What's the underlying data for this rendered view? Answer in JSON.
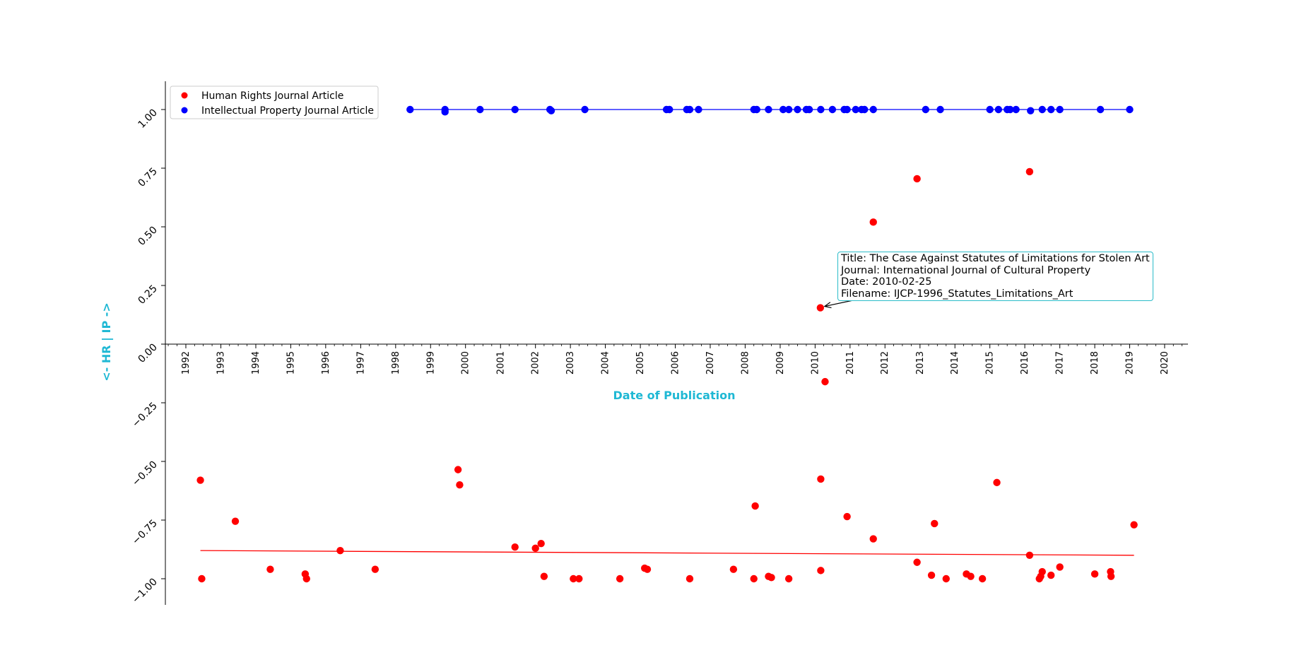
{
  "chart_data": {
    "type": "scatter",
    "title": "",
    "xlabel": "Date of Publication",
    "ylabel": "<- HR | IP ->",
    "xlim": [
      "1991-06-01",
      "2020-09-01"
    ],
    "ylim": [
      -1.1,
      1.12
    ],
    "x_tick_labels": [
      "1992",
      "1993",
      "1994",
      "1995",
      "1996",
      "1997",
      "1998",
      "1999",
      "2000",
      "2001",
      "2002",
      "2003",
      "2004",
      "2005",
      "2006",
      "2007",
      "2008",
      "2009",
      "2010",
      "2011",
      "2012",
      "2013",
      "2014",
      "2015",
      "2016",
      "2017",
      "2018",
      "2019",
      "2020"
    ],
    "y_ticks": [
      -1.0,
      -0.75,
      -0.5,
      -0.25,
      0.0,
      0.25,
      0.5,
      0.75,
      1.0
    ],
    "y_tick_labels": [
      "−1.00",
      "−0.75",
      "−0.50",
      "−0.25",
      "0.00",
      "0.25",
      "0.50",
      "0.75",
      "1.00"
    ],
    "grid": false,
    "legend_placement": "top-left",
    "axis_label_color": "#1fb8d4",
    "series": [
      {
        "name": "Human Rights Journal Article",
        "color": "#ff0000",
        "points": [
          [
            "1992-06-01",
            -0.58
          ],
          [
            "1992-06-15",
            -1.0
          ],
          [
            "1993-06-01",
            -0.755
          ],
          [
            "1994-06-01",
            -0.96
          ],
          [
            "1995-06-01",
            -0.98
          ],
          [
            "1995-06-15",
            -1.0
          ],
          [
            "1996-06-01",
            -0.88
          ],
          [
            "1997-06-01",
            -0.96
          ],
          [
            "1999-10-15",
            -0.535
          ],
          [
            "1999-11-01",
            -0.6
          ],
          [
            "2001-06-01",
            -0.865
          ],
          [
            "2002-01-01",
            -0.87
          ],
          [
            "2002-03-01",
            -0.85
          ],
          [
            "2002-04-01",
            -0.99
          ],
          [
            "2003-02-01",
            -1.0
          ],
          [
            "2003-04-01",
            -1.0
          ],
          [
            "2004-06-01",
            -1.0
          ],
          [
            "2005-02-15",
            -0.955
          ],
          [
            "2005-03-15",
            -0.96
          ],
          [
            "2006-06-01",
            -1.0
          ],
          [
            "2007-09-01",
            -0.96
          ],
          [
            "2008-04-01",
            -1.0
          ],
          [
            "2008-04-15",
            -0.69
          ],
          [
            "2008-09-01",
            -0.99
          ],
          [
            "2008-10-01",
            -0.995
          ],
          [
            "2009-04-01",
            -1.0
          ],
          [
            "2010-02-25",
            0.155
          ],
          [
            "2010-03-01",
            -0.575
          ],
          [
            "2010-03-01",
            -0.965
          ],
          [
            "2010-04-15",
            -0.16
          ],
          [
            "2010-12-01",
            -0.735
          ],
          [
            "2011-09-01",
            0.52
          ],
          [
            "2011-09-01",
            -0.83
          ],
          [
            "2012-12-01",
            0.705
          ],
          [
            "2012-12-01",
            -0.93
          ],
          [
            "2013-05-01",
            -0.985
          ],
          [
            "2013-06-01",
            -0.765
          ],
          [
            "2013-10-01",
            -1.0
          ],
          [
            "2014-05-01",
            -0.98
          ],
          [
            "2014-06-15",
            -0.99
          ],
          [
            "2014-10-15",
            -1.0
          ],
          [
            "2015-03-15",
            -0.59
          ],
          [
            "2016-02-20",
            0.735
          ],
          [
            "2016-02-20",
            -0.9
          ],
          [
            "2016-06-01",
            -1.0
          ],
          [
            "2016-06-15",
            -0.99
          ],
          [
            "2016-07-01",
            -0.97
          ],
          [
            "2016-10-01",
            -0.985
          ],
          [
            "2017-01-01",
            -0.95
          ],
          [
            "2018-01-01",
            -0.98
          ],
          [
            "2018-06-15",
            -0.97
          ],
          [
            "2018-06-20",
            -0.99
          ],
          [
            "2019-02-15",
            -0.77
          ]
        ],
        "trend": [
          [
            "1992-06-01",
            -0.88
          ],
          [
            "2019-02-15",
            -0.9
          ]
        ]
      },
      {
        "name": "Intellectual Property Journal Article",
        "color": "#0000ff",
        "points": [
          [
            "1998-06-01",
            1.0
          ],
          [
            "1999-06-01",
            1.0
          ],
          [
            "1999-06-01",
            0.99
          ],
          [
            "2000-06-01",
            1.0
          ],
          [
            "2001-06-01",
            1.0
          ],
          [
            "2002-06-01",
            1.0
          ],
          [
            "2002-06-15",
            0.995
          ],
          [
            "2003-06-01",
            1.0
          ],
          [
            "2005-10-01",
            1.0
          ],
          [
            "2005-11-01",
            1.0
          ],
          [
            "2006-05-01",
            1.0
          ],
          [
            "2006-06-01",
            1.0
          ],
          [
            "2006-09-01",
            1.0
          ],
          [
            "2008-04-01",
            1.0
          ],
          [
            "2008-05-01",
            1.0
          ],
          [
            "2008-09-01",
            1.0
          ],
          [
            "2009-02-01",
            1.0
          ],
          [
            "2009-04-01",
            1.0
          ],
          [
            "2009-07-01",
            1.0
          ],
          [
            "2009-10-01",
            1.0
          ],
          [
            "2009-11-01",
            1.0
          ],
          [
            "2010-03-01",
            1.0
          ],
          [
            "2010-07-01",
            1.0
          ],
          [
            "2010-11-01",
            1.0
          ],
          [
            "2010-12-01",
            1.0
          ],
          [
            "2011-03-01",
            1.0
          ],
          [
            "2011-05-01",
            1.0
          ],
          [
            "2011-06-01",
            1.0
          ],
          [
            "2011-09-01",
            1.0
          ],
          [
            "2013-03-01",
            1.0
          ],
          [
            "2013-08-01",
            1.0
          ],
          [
            "2015-01-01",
            1.0
          ],
          [
            "2015-04-01",
            1.0
          ],
          [
            "2015-07-01",
            1.0
          ],
          [
            "2015-08-01",
            1.0
          ],
          [
            "2015-10-01",
            1.0
          ],
          [
            "2016-03-01",
            0.995
          ],
          [
            "2016-07-01",
            1.0
          ],
          [
            "2016-10-01",
            1.0
          ],
          [
            "2017-01-01",
            1.0
          ],
          [
            "2018-03-01",
            1.0
          ],
          [
            "2019-01-01",
            1.0
          ]
        ],
        "trend": [
          [
            "1998-06-01",
            1.0
          ],
          [
            "2019-01-01",
            1.0
          ]
        ]
      }
    ],
    "annotation": {
      "x": "2010-02-25",
      "y": 0.155,
      "lines": [
        "Title: The Case Against Statutes of Limitations for Stolen Art",
        "Journal: International Journal of Cultural Property",
        "Date: 2010-02-25",
        "Filename: IJCP-1996_Statutes_Limitations_Art"
      ]
    }
  }
}
